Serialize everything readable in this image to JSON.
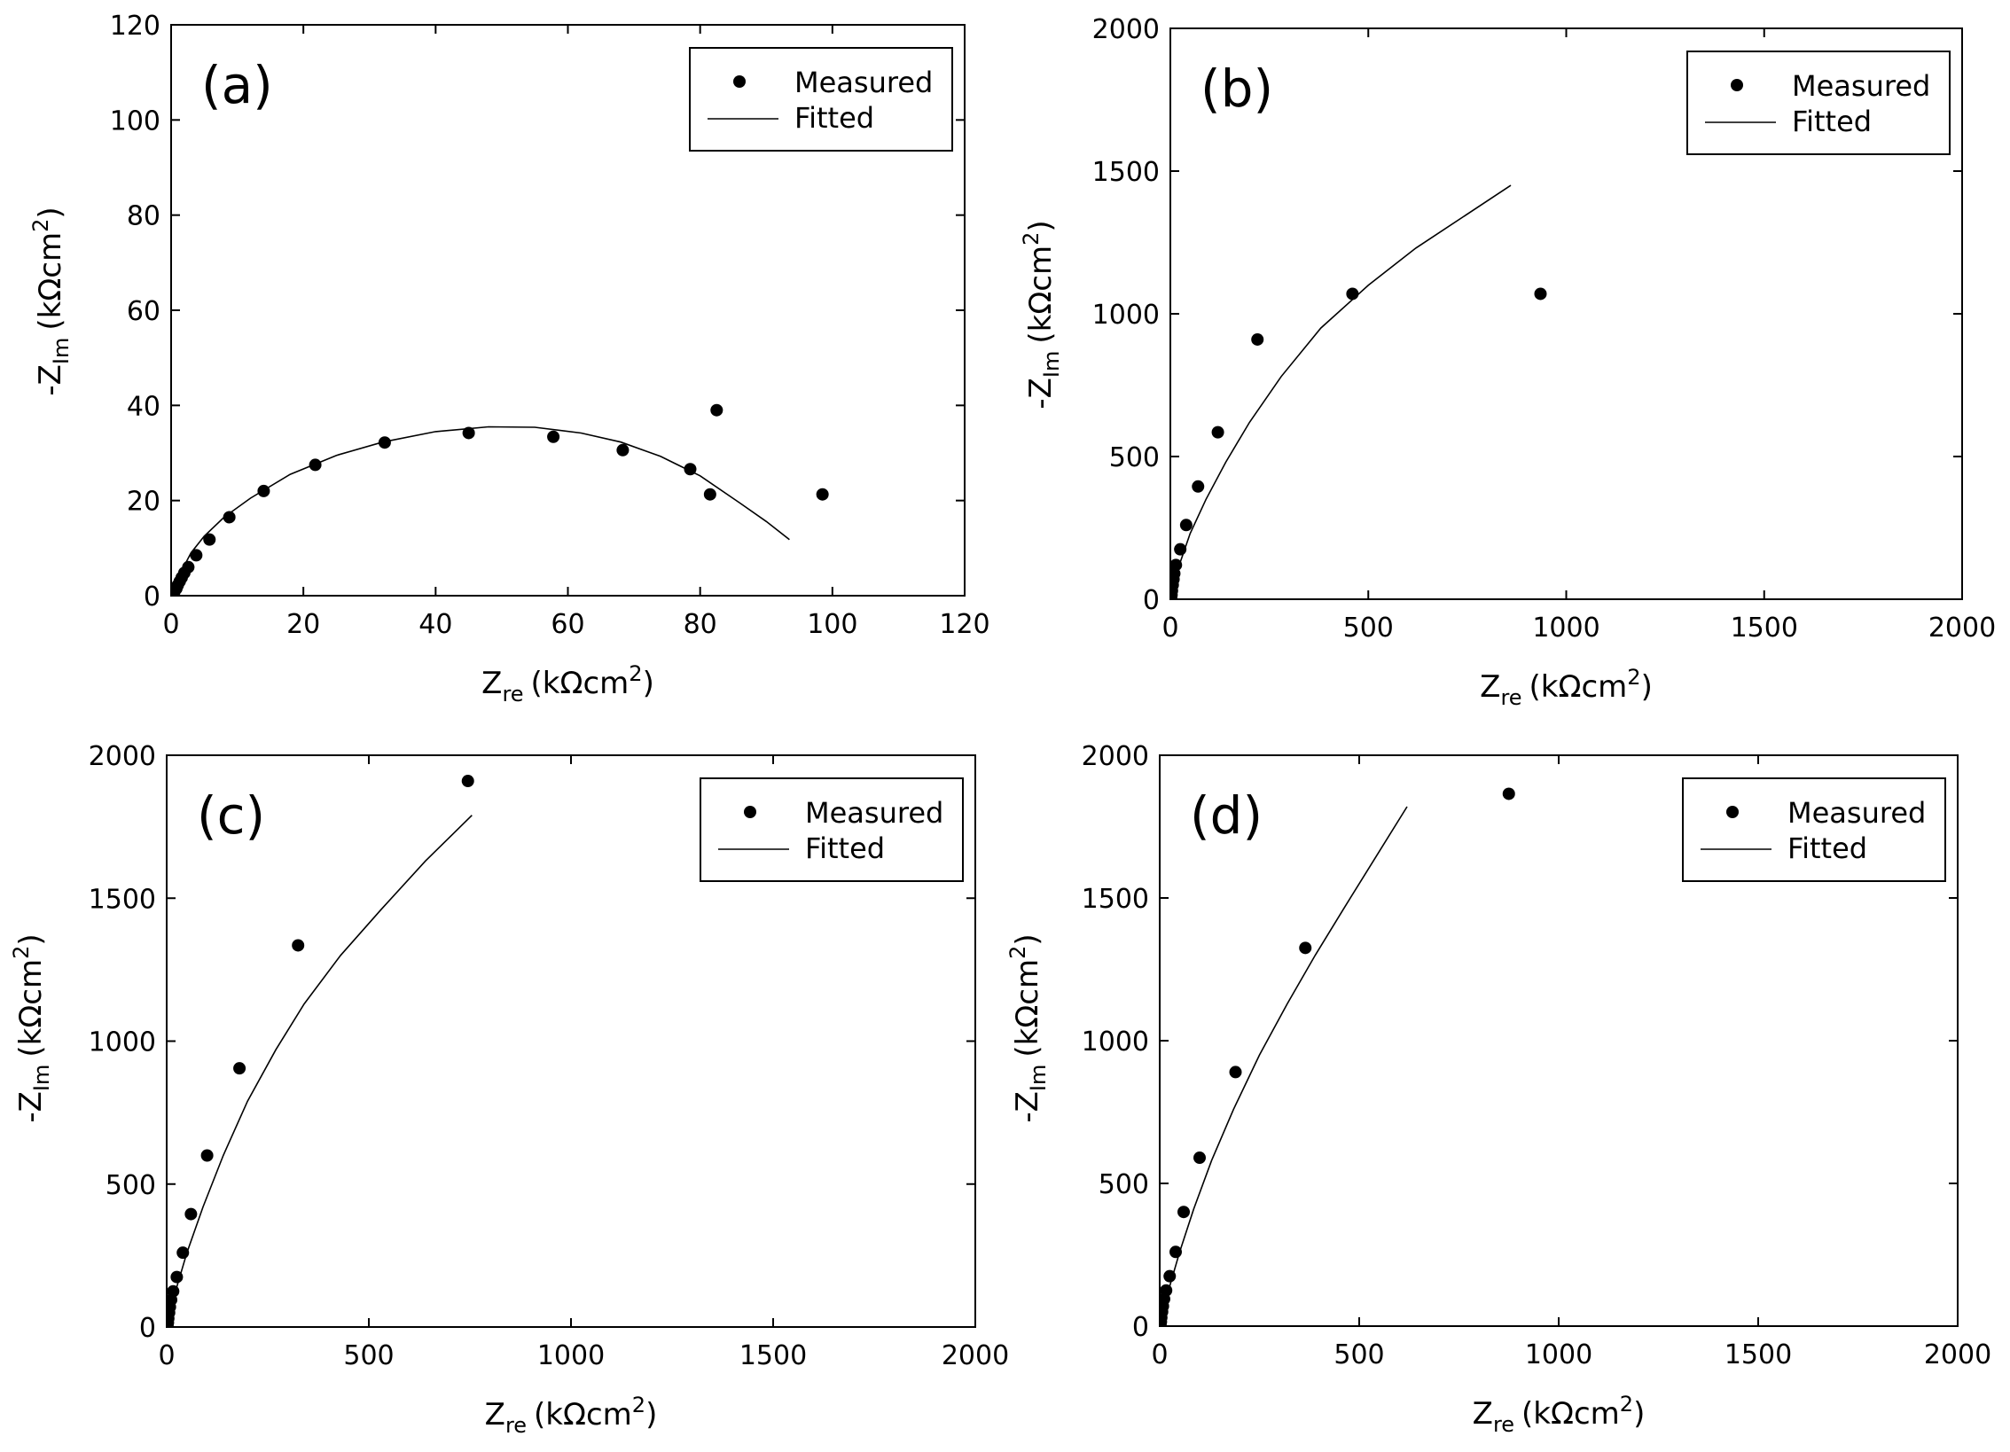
{
  "chart_data": [
    {
      "type": "scatter",
      "panel_label": "(a)",
      "xlabel": {
        "main": "Z",
        "sub": "re",
        "unit": "(kΩcm",
        "sup": "2",
        "close": ")"
      },
      "ylabel": {
        "main": "-Z",
        "sub": "Im",
        "unit": "(kΩcm",
        "sup": "2",
        "close": ")"
      },
      "xlim": [
        0,
        120
      ],
      "ylim": [
        0,
        120
      ],
      "xticks": [
        0,
        20,
        40,
        60,
        80,
        100,
        120
      ],
      "yticks": [
        0,
        20,
        40,
        60,
        80,
        100,
        120
      ],
      "xtick_labels": [
        "0",
        "20",
        "40",
        "60",
        "80",
        "100",
        "120"
      ],
      "ytick_labels": [
        "0",
        "20",
        "40",
        "60",
        "80",
        "100",
        "120"
      ],
      "legend": {
        "position": "top-right",
        "measured": "Measured",
        "fitted": "Fitted"
      },
      "series": [
        {
          "name": "Measured",
          "points": [
            [
              0.3,
              0.3
            ],
            [
              0.5,
              0.8
            ],
            [
              0.8,
              1.5
            ],
            [
              1.0,
              2.2
            ],
            [
              1.3,
              3.0
            ],
            [
              1.6,
              3.8
            ],
            [
              2.0,
              4.8
            ],
            [
              2.6,
              6.0
            ],
            [
              3.8,
              8.5
            ],
            [
              5.8,
              11.8
            ],
            [
              8.8,
              16.5
            ],
            [
              14,
              22
            ],
            [
              21.8,
              27.5
            ],
            [
              32.3,
              32.2
            ],
            [
              45,
              34.2
            ],
            [
              57.8,
              33.4
            ],
            [
              68.3,
              30.6
            ],
            [
              78.5,
              26.6
            ],
            [
              81.5,
              21.3
            ],
            [
              82.5,
              39
            ],
            [
              98.5,
              21.3
            ]
          ]
        },
        {
          "name": "Fitted",
          "points": [
            [
              0,
              0
            ],
            [
              1.5,
              5
            ],
            [
              3,
              9
            ],
            [
              5,
              12.5
            ],
            [
              8,
              16.5
            ],
            [
              12,
              20.5
            ],
            [
              18,
              25.5
            ],
            [
              25,
              29.5
            ],
            [
              32,
              32.3
            ],
            [
              40,
              34.5
            ],
            [
              48,
              35.5
            ],
            [
              55,
              35.4
            ],
            [
              62,
              34.2
            ],
            [
              68,
              32.3
            ],
            [
              74,
              29.3
            ],
            [
              80,
              25.2
            ],
            [
              86,
              19.5
            ],
            [
              90,
              15.6
            ],
            [
              93.5,
              11.8
            ]
          ]
        }
      ]
    },
    {
      "type": "scatter",
      "panel_label": "(b)",
      "xlabel": {
        "main": "Z",
        "sub": "re",
        "unit": "(kΩcm",
        "sup": "2",
        "close": ")"
      },
      "ylabel": {
        "main": "-Z",
        "sub": "Im",
        "unit": "(kΩcm",
        "sup": "2",
        "close": ")"
      },
      "xlim": [
        0,
        2000
      ],
      "ylim": [
        0,
        2000
      ],
      "xticks": [
        0,
        500,
        1000,
        1500,
        2000
      ],
      "yticks": [
        0,
        500,
        1000,
        1500,
        2000
      ],
      "xtick_labels": [
        "0",
        "500",
        "1000",
        "1500",
        "2000"
      ],
      "ytick_labels": [
        "0",
        "500",
        "1000",
        "1500",
        "2000"
      ],
      "legend": {
        "position": "top-right",
        "measured": "Measured",
        "fitted": "Fitted"
      },
      "series": [
        {
          "name": "Measured",
          "points": [
            [
              2,
              5
            ],
            [
              3,
              15
            ],
            [
              4,
              30
            ],
            [
              6,
              50
            ],
            [
              8,
              70
            ],
            [
              10,
              90
            ],
            [
              14,
              120
            ],
            [
              25,
              175
            ],
            [
              40,
              260
            ],
            [
              70,
              395
            ],
            [
              120,
              585
            ],
            [
              220,
              910
            ],
            [
              460,
              1070
            ],
            [
              935,
              1070
            ]
          ]
        },
        {
          "name": "Fitted",
          "points": [
            [
              0,
              0
            ],
            [
              10,
              60
            ],
            [
              25,
              130
            ],
            [
              50,
              230
            ],
            [
              90,
              350
            ],
            [
              140,
              480
            ],
            [
              200,
              620
            ],
            [
              280,
              780
            ],
            [
              380,
              950
            ],
            [
              500,
              1100
            ],
            [
              620,
              1230
            ],
            [
              740,
              1340
            ],
            [
              860,
              1450
            ]
          ]
        }
      ]
    },
    {
      "type": "scatter",
      "panel_label": "(c)",
      "xlabel": {
        "main": "Z",
        "sub": "re",
        "unit": "(kΩcm",
        "sup": "2",
        "close": ")"
      },
      "ylabel": {
        "main": "-Z",
        "sub": "Im",
        "unit": "(kΩcm",
        "sup": "2",
        "close": ")"
      },
      "xlim": [
        0,
        2000
      ],
      "ylim": [
        0,
        2000
      ],
      "xticks": [
        0,
        500,
        1000,
        1500,
        2000
      ],
      "yticks": [
        0,
        500,
        1000,
        1500,
        2000
      ],
      "xtick_labels": [
        "0",
        "500",
        "1000",
        "1500",
        "2000"
      ],
      "ytick_labels": [
        "0",
        "500",
        "1000",
        "1500",
        "2000"
      ],
      "legend": {
        "position": "top-right",
        "measured": "Measured",
        "fitted": "Fitted"
      },
      "series": [
        {
          "name": "Measured",
          "points": [
            [
              2,
              5
            ],
            [
              3,
              15
            ],
            [
              4,
              30
            ],
            [
              6,
              50
            ],
            [
              8,
              70
            ],
            [
              11,
              95
            ],
            [
              16,
              125
            ],
            [
              25,
              175
            ],
            [
              40,
              260
            ],
            [
              60,
              395
            ],
            [
              100,
              600
            ],
            [
              180,
              905
            ],
            [
              325,
              1335
            ],
            [
              745,
              1910
            ]
          ]
        },
        {
          "name": "Fitted",
          "points": [
            [
              0,
              0
            ],
            [
              10,
              60
            ],
            [
              25,
              140
            ],
            [
              50,
              260
            ],
            [
              90,
              420
            ],
            [
              140,
              600
            ],
            [
              200,
              790
            ],
            [
              270,
              970
            ],
            [
              340,
              1130
            ],
            [
              430,
              1300
            ],
            [
              530,
              1460
            ],
            [
              640,
              1630
            ],
            [
              755,
              1790
            ]
          ]
        }
      ]
    },
    {
      "type": "scatter",
      "panel_label": "(d)",
      "xlabel": {
        "main": "Z",
        "sub": "re",
        "unit": "(kΩcm",
        "sup": "2",
        "close": ")"
      },
      "ylabel": {
        "main": "-Z",
        "sub": "Im",
        "unit": "(kΩcm",
        "sup": "2",
        "close": ")"
      },
      "xlim": [
        0,
        2000
      ],
      "ylim": [
        0,
        2000
      ],
      "xticks": [
        0,
        500,
        1000,
        1500,
        2000
      ],
      "yticks": [
        0,
        500,
        1000,
        1500,
        2000
      ],
      "xtick_labels": [
        "0",
        "500",
        "1000",
        "1500",
        "2000"
      ],
      "ytick_labels": [
        "0",
        "500",
        "1000",
        "1500",
        "2000"
      ],
      "legend": {
        "position": "top-right",
        "measured": "Measured",
        "fitted": "Fitted"
      },
      "series": [
        {
          "name": "Measured",
          "points": [
            [
              2,
              5
            ],
            [
              3,
              15
            ],
            [
              4,
              30
            ],
            [
              6,
              50
            ],
            [
              8,
              70
            ],
            [
              11,
              95
            ],
            [
              16,
              125
            ],
            [
              25,
              175
            ],
            [
              40,
              260
            ],
            [
              60,
              400
            ],
            [
              100,
              590
            ],
            [
              190,
              890
            ],
            [
              365,
              1325
            ],
            [
              875,
              1865
            ]
          ]
        },
        {
          "name": "Fitted",
          "points": [
            [
              0,
              0
            ],
            [
              10,
              60
            ],
            [
              25,
              140
            ],
            [
              50,
              260
            ],
            [
              85,
              410
            ],
            [
              130,
              580
            ],
            [
              185,
              760
            ],
            [
              250,
              950
            ],
            [
              320,
              1130
            ],
            [
              390,
              1300
            ],
            [
              460,
              1460
            ],
            [
              540,
              1640
            ],
            [
              620,
              1820
            ]
          ]
        }
      ]
    }
  ]
}
